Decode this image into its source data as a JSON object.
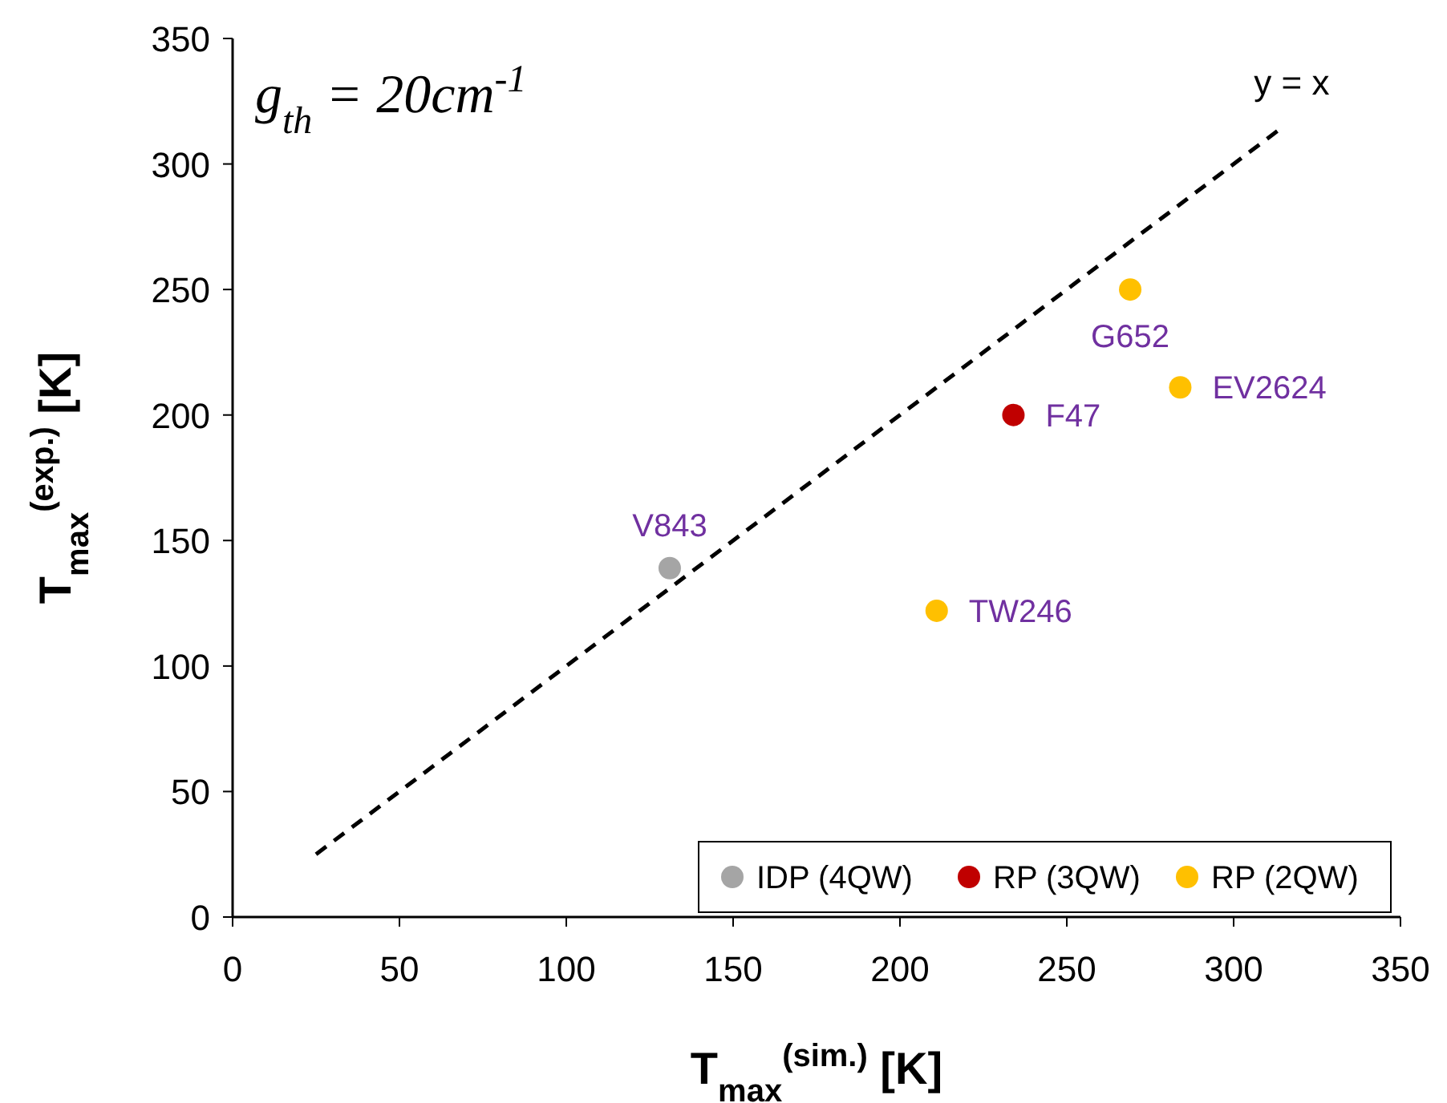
{
  "chart_data": {
    "type": "scatter",
    "xlabel": "T$_{max}$$^{(sim.)}$ [K]",
    "ylabel": "T$_{max}$$^{(exp.)}$ [K]",
    "xlim": [
      0,
      350
    ],
    "ylim": [
      0,
      350
    ],
    "xticks": [
      0,
      50,
      100,
      150,
      200,
      250,
      300,
      350
    ],
    "yticks": [
      0,
      50,
      100,
      150,
      200,
      250,
      300,
      350
    ],
    "grid": false,
    "legend": "bottom right",
    "marker": "circle",
    "series": [
      {
        "name": "IDP (4QW)",
        "color": "#a5a5a5",
        "x": [
          131
        ],
        "values": [
          139
        ]
      },
      {
        "name": "RP (3QW)",
        "color": "#c00000",
        "x": [
          234
        ],
        "values": [
          200
        ]
      },
      {
        "name": "RP (2QW)",
        "color": "#ffc000",
        "x": [
          211,
          269,
          284
        ],
        "values": [
          122,
          250,
          211
        ]
      },
      {
        "name": "y = x",
        "type": "line",
        "color": "#000000",
        "line_style": "dashed",
        "marker": "none",
        "x": [
          25,
          315
        ],
        "values": [
          25,
          315
        ]
      }
    ],
    "annotations": [
      "g$_{th}$ = 20cm$^{-1}$",
      {
        "text": "V843",
        "x": 131,
        "y": 139
      },
      {
        "text": "F47",
        "x": 234,
        "y": 200
      },
      {
        "text": "TW246",
        "x": 211,
        "y": 122
      },
      {
        "text": "G652",
        "x": 269,
        "y": 250
      },
      {
        "text": "EV2624",
        "x": 284,
        "y": 211
      }
    ]
  }
}
